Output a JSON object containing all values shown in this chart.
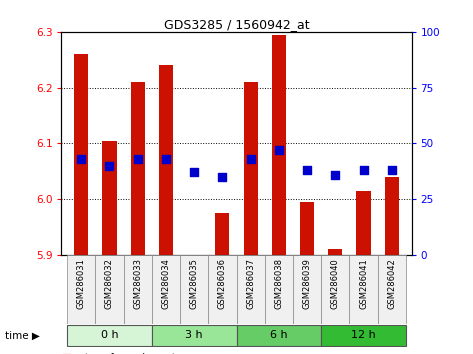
{
  "title": "GDS3285 / 1560942_at",
  "samples": [
    "GSM286031",
    "GSM286032",
    "GSM286033",
    "GSM286034",
    "GSM286035",
    "GSM286036",
    "GSM286037",
    "GSM286038",
    "GSM286039",
    "GSM286040",
    "GSM286041",
    "GSM286042"
  ],
  "transformed_count": [
    6.26,
    6.105,
    6.21,
    6.24,
    5.9,
    5.975,
    6.21,
    6.295,
    5.995,
    5.91,
    6.015,
    6.04
  ],
  "percentile_rank": [
    43,
    40,
    43,
    43,
    37,
    35,
    43,
    47,
    38,
    36,
    38,
    38
  ],
  "groups": [
    {
      "label": "0 h",
      "indices": [
        0,
        1,
        2
      ],
      "color": "#d6f5d6"
    },
    {
      "label": "3 h",
      "indices": [
        3,
        4,
        5
      ],
      "color": "#99e699"
    },
    {
      "label": "6 h",
      "indices": [
        6,
        7,
        8
      ],
      "color": "#66cc66"
    },
    {
      "label": "12 h",
      "indices": [
        9,
        10,
        11
      ],
      "color": "#33bb33"
    }
  ],
  "ylim_left": [
    5.9,
    6.3
  ],
  "ylim_right": [
    0,
    100
  ],
  "yticks_left": [
    5.9,
    6.0,
    6.1,
    6.2,
    6.3
  ],
  "yticks_right": [
    0,
    25,
    50,
    75,
    100
  ],
  "bar_color": "#cc1100",
  "dot_color": "#0000cc",
  "bar_bottom": 5.9,
  "bar_width": 0.5,
  "dot_size": 30,
  "bg_color": "#f0f0f0"
}
